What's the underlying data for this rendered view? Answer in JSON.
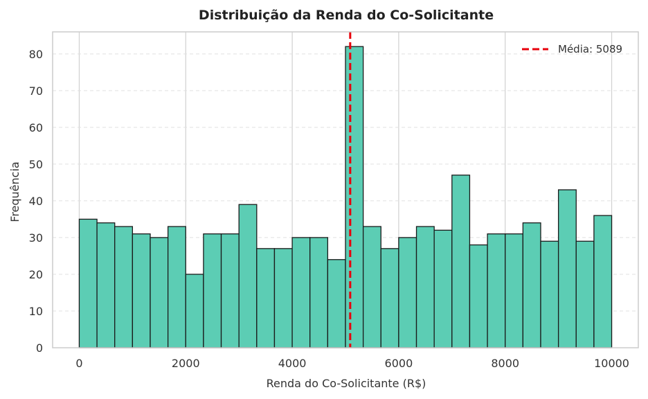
{
  "chart_data": {
    "type": "bar",
    "title": "Distribuição da Renda do Co-Solicitante",
    "xlabel": "Renda do Co-Solicitante (R$)",
    "ylabel": "Frequência",
    "xlim": [
      -500,
      10500
    ],
    "ylim": [
      0,
      86
    ],
    "xticks": [
      0,
      2000,
      4000,
      6000,
      8000,
      10000
    ],
    "yticks": [
      0,
      10,
      20,
      30,
      40,
      50,
      60,
      70,
      80
    ],
    "bin_start": 0,
    "bin_width": 333.33,
    "values": [
      35,
      34,
      33,
      31,
      30,
      33,
      20,
      31,
      31,
      39,
      27,
      27,
      30,
      30,
      24,
      82,
      33,
      27,
      30,
      33,
      32,
      47,
      28,
      31,
      31,
      34,
      29,
      43,
      29,
      36
    ],
    "mean_line": {
      "value": 5089,
      "label": "Média: 5089"
    },
    "legend_position": "top-right",
    "grid": true,
    "colors": {
      "bar_fill": "#5ccdb4",
      "bar_edge": "#1a1a1a",
      "mean_line": "#e8000b",
      "grid": "#e0e0e0",
      "axes": "#cccccc"
    }
  }
}
